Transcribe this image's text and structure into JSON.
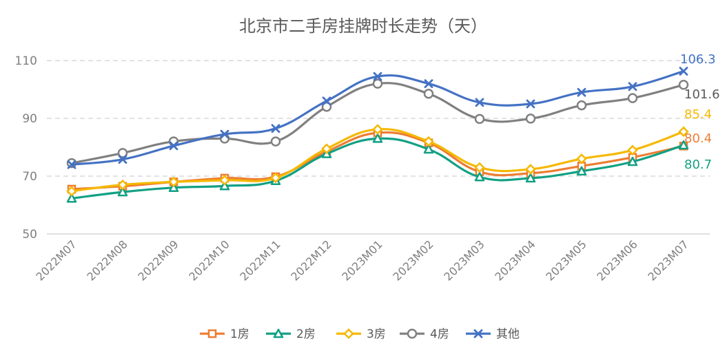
{
  "chart_data": {
    "type": "line",
    "title": "北京市二手房挂牌时长走势（天）",
    "categories": [
      "2022M07",
      "2022M08",
      "2022M09",
      "2022M10",
      "2022M11",
      "2022M12",
      "2023M01",
      "2023M02",
      "2023M03",
      "2023M04",
      "2023M05",
      "2023M06",
      "2023M07"
    ],
    "ylim": [
      50,
      110
    ],
    "yticks": [
      50,
      70,
      90,
      110
    ],
    "grid": true,
    "legend_position": "bottom",
    "series": [
      {
        "name": "1房",
        "color": "#ED7D31",
        "marker": "square",
        "values": [
          65.5,
          66.5,
          68,
          69.3,
          69.8,
          78.5,
          85,
          81.5,
          71.5,
          71,
          73.5,
          76.5,
          80.4
        ],
        "end_label": "80.4"
      },
      {
        "name": "2房",
        "color": "#12A083",
        "marker": "triangle",
        "values": [
          62.3,
          64.5,
          66,
          66.6,
          68.4,
          77.7,
          83,
          79.3,
          69.7,
          69.3,
          71.7,
          75,
          80.7
        ],
        "end_label": "80.7"
      },
      {
        "name": "3房",
        "color": "#F5B800",
        "marker": "diamond",
        "values": [
          64.8,
          67,
          68,
          68.6,
          69.4,
          79.5,
          86.2,
          82,
          73,
          72.4,
          76,
          79,
          85.4
        ],
        "end_label": "85.4"
      },
      {
        "name": "4房",
        "color": "#808080",
        "marker": "circle",
        "values": [
          74.5,
          78,
          82,
          83,
          82,
          94,
          102,
          98.5,
          89.8,
          89.9,
          94.5,
          97,
          101.6
        ],
        "end_label": "101.6"
      },
      {
        "name": "其他",
        "color": "#4472C4",
        "marker": "x",
        "values": [
          74,
          75.8,
          80.5,
          84.5,
          86.5,
          96,
          104.5,
          102,
          95.5,
          95,
          99,
          101,
          106.3
        ],
        "end_label": "106.3"
      }
    ]
  }
}
